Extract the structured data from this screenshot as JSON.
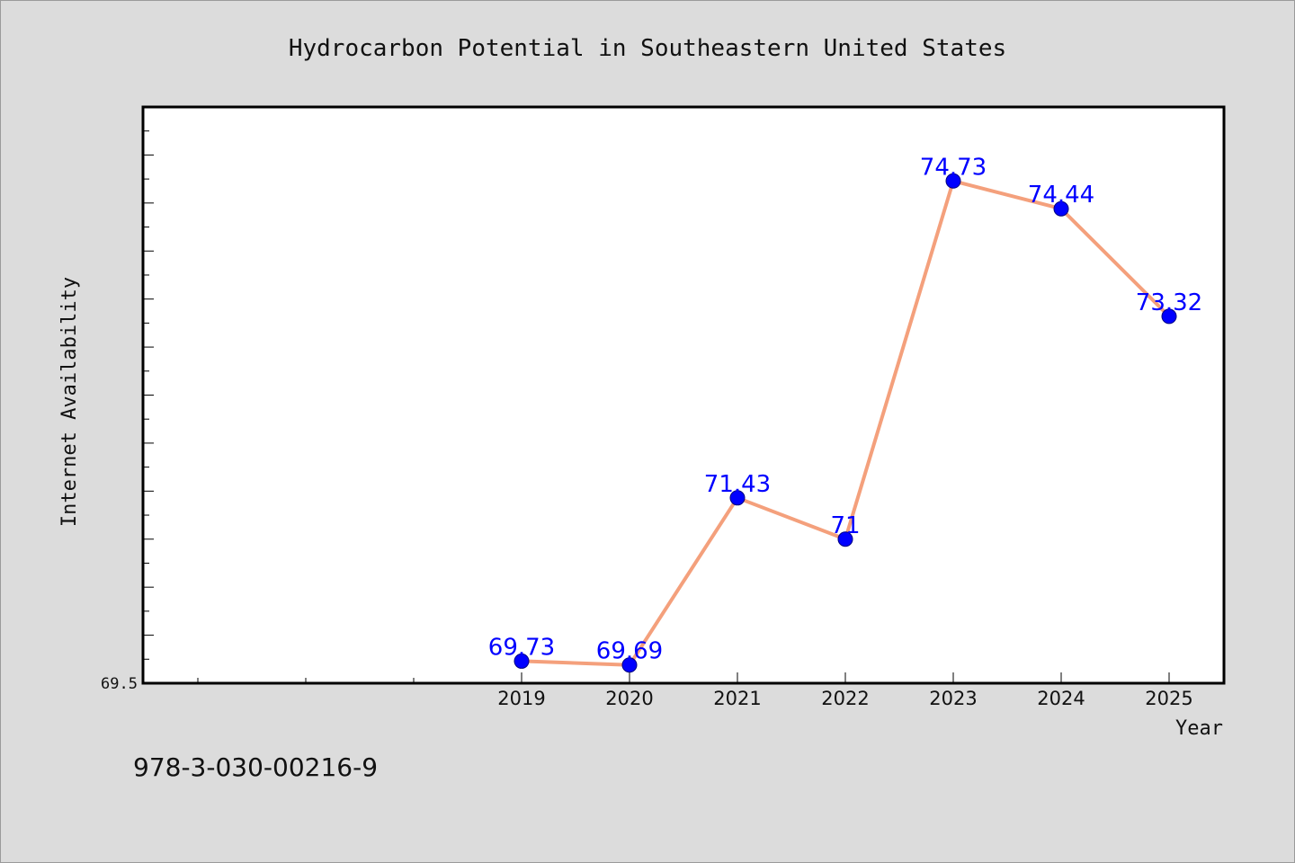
{
  "chart_data": {
    "type": "line",
    "title": "Hydrocarbon Potential in Southeastern United States",
    "xlabel": "Year",
    "ylabel": "Internet Availability",
    "x": [
      "2019",
      "2020",
      "2021",
      "2022",
      "2023",
      "2024",
      "2025"
    ],
    "series": [
      {
        "values": [
          69.73,
          69.69,
          71.43,
          71,
          74.73,
          74.44,
          73.32
        ],
        "labels": [
          "69.73",
          "69.69",
          "71.43",
          "71",
          "74.73",
          "74.44",
          "73.32"
        ],
        "line_color": "#f4a07c",
        "marker_color": "#0000ff",
        "label_color": "#0000ff"
      }
    ],
    "ylim": [
      69.5,
      75.5
    ],
    "y_tick_labels": [
      "69.5"
    ],
    "grid": false,
    "legend": "none"
  },
  "footer": {
    "isbn": "978-3-030-00216-9"
  },
  "colors": {
    "background": "#dcdcdc",
    "plot_background": "#ffffff",
    "axis": "#000000"
  }
}
